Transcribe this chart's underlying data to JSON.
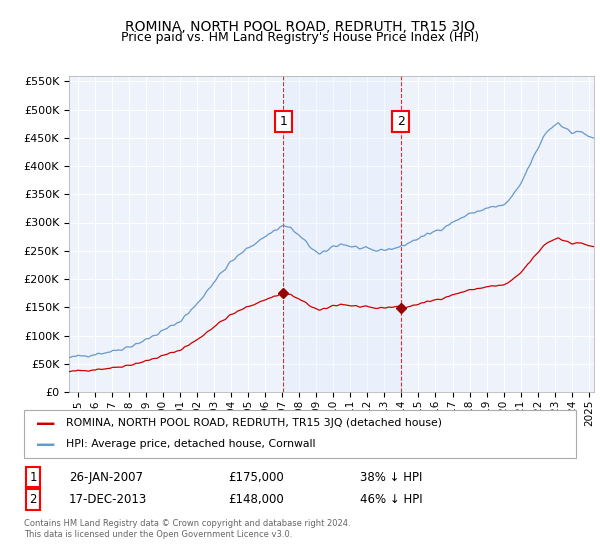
{
  "title": "ROMINA, NORTH POOL ROAD, REDRUTH, TR15 3JQ",
  "subtitle": "Price paid vs. HM Land Registry's House Price Index (HPI)",
  "legend_label_red": "ROMINA, NORTH POOL ROAD, REDRUTH, TR15 3JQ (detached house)",
  "legend_label_blue": "HPI: Average price, detached house, Cornwall",
  "footer": "Contains HM Land Registry data © Crown copyright and database right 2024.\nThis data is licensed under the Open Government Licence v3.0.",
  "sale1": {
    "label": "1",
    "date": "26-JAN-2007",
    "price": "£175,000",
    "hpi": "38% ↓ HPI",
    "x": 2007.08
  },
  "sale2": {
    "label": "2",
    "date": "17-DEC-2013",
    "price": "£148,000",
    "hpi": "46% ↓ HPI",
    "x": 2013.96
  },
  "sale1_y": 175000,
  "sale2_y": 148000,
  "ylim": [
    0,
    560000
  ],
  "xlim_start": 1994.5,
  "xlim_end": 2025.3,
  "yticks": [
    0,
    50000,
    100000,
    150000,
    200000,
    250000,
    300000,
    350000,
    400000,
    450000,
    500000,
    550000
  ],
  "ytick_labels": [
    "£0",
    "£50K",
    "£100K",
    "£150K",
    "£200K",
    "£250K",
    "£300K",
    "£350K",
    "£400K",
    "£450K",
    "£500K",
    "£550K"
  ],
  "xticks": [
    1995,
    1996,
    1997,
    1998,
    1999,
    2000,
    2001,
    2002,
    2003,
    2004,
    2005,
    2006,
    2007,
    2008,
    2009,
    2010,
    2011,
    2012,
    2013,
    2014,
    2015,
    2016,
    2017,
    2018,
    2019,
    2020,
    2021,
    2022,
    2023,
    2024,
    2025
  ],
  "red_color": "#cc0000",
  "blue_color": "#6699cc",
  "shade_color": "#ddeeff",
  "bg_color": "#ffffff",
  "plot_bg_color": "#eef2fa",
  "grid_color": "#ffffff",
  "vline_color": "#cc0000",
  "marker_color": "#990000"
}
